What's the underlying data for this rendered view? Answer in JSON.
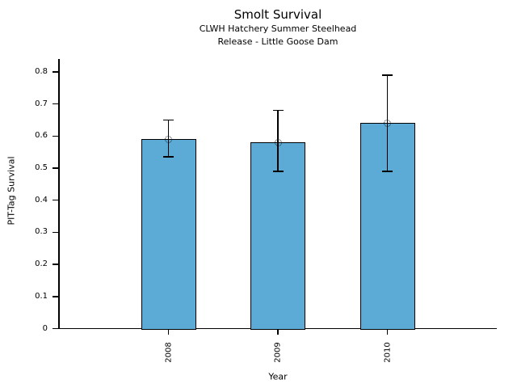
{
  "chart_data": {
    "type": "bar",
    "title": "Smolt Survival",
    "subtitle_lines": [
      "CLWH Hatchery Summer Steelhead",
      "Release - Little Goose Dam"
    ],
    "categories": [
      "2008",
      "2009",
      "2010"
    ],
    "values": [
      0.59,
      0.58,
      0.64
    ],
    "error_low": [
      0.535,
      0.49,
      0.49
    ],
    "error_high": [
      0.65,
      0.68,
      0.79
    ],
    "xlabel": "Year",
    "ylabel": "PIT-Tag Survival",
    "ylim": [
      0,
      0.84
    ],
    "yticks": [
      0,
      0.1,
      0.2,
      0.3,
      0.4,
      0.5,
      0.6,
      0.7,
      0.8
    ],
    "ytick_labels": [
      "0",
      "0.1",
      "0.2",
      "0.3",
      "0.4",
      "0.5",
      "0.6",
      "0.7",
      "0.8"
    ],
    "grid": false,
    "legend": null,
    "bar_color": "#5BABD6",
    "bar_edge_color": "#000000",
    "error_color": "#000000",
    "marker": "open-dotted-circle"
  }
}
